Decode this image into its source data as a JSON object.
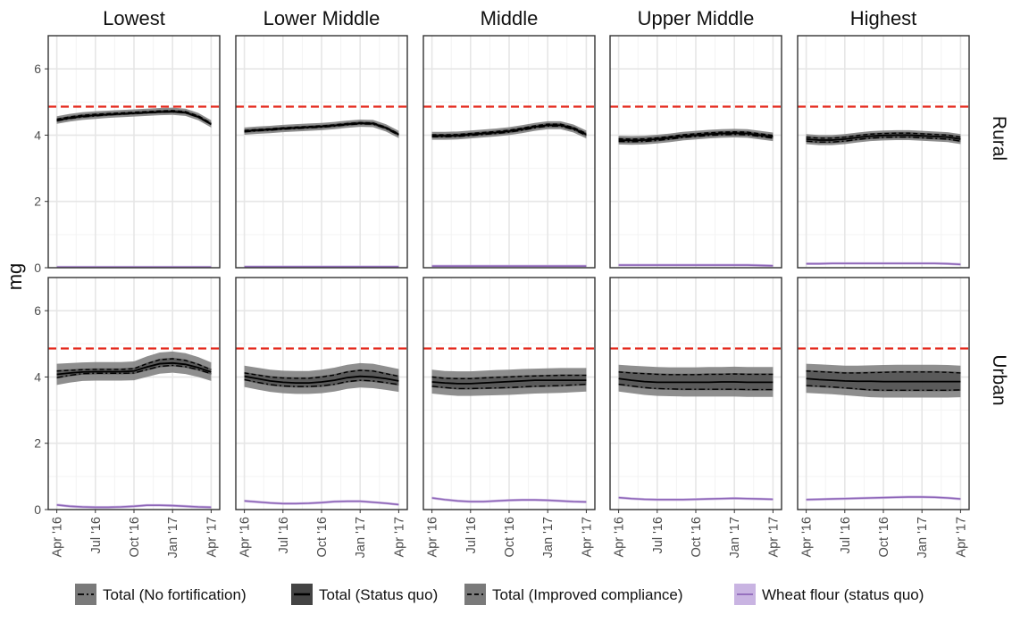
{
  "colors": {
    "panel_border": "#333333",
    "grid_major": "#e6e6e6",
    "grid_minor": "#f3f3f3",
    "ribbon": "#7a7a7a",
    "ribbon_dark": "#444444",
    "line": "#000000",
    "wheat": "#8e66b8",
    "wheat_ribbon": "#c9b4e2",
    "reference": "#e4271b"
  },
  "chart_data": {
    "type": "line",
    "ylabel": "mg",
    "ylim": [
      0,
      7
    ],
    "yticks": [
      0,
      2,
      4,
      6
    ],
    "reference_line": 4.86,
    "x_ticks": [
      "2016-04",
      "2016-07",
      "2016-10",
      "2017-01",
      "2017-04"
    ],
    "x_tick_labels": [
      "Apr '16",
      "Jul '16",
      "Oct '16",
      "Jan '17",
      "Apr '17"
    ],
    "x_months": [
      "2016-04",
      "2016-05",
      "2016-06",
      "2016-07",
      "2016-08",
      "2016-09",
      "2016-10",
      "2016-11",
      "2016-12",
      "2017-01",
      "2017-02",
      "2017-03",
      "2017-04"
    ],
    "columns": [
      "Lowest",
      "Lower Middle",
      "Middle",
      "Upper Middle",
      "Highest"
    ],
    "rows": [
      "Rural",
      "Urban"
    ],
    "legend": [
      {
        "key": "no_fort",
        "label": "Total (No fortification)"
      },
      {
        "key": "status_quo",
        "label": "Total (Status quo)"
      },
      {
        "key": "improved",
        "label": "Total (Improved compliance)"
      },
      {
        "key": "wheat",
        "label": "Wheat flour (status quo)"
      }
    ],
    "panels": [
      {
        "row": "Rural",
        "col": "Lowest",
        "status_quo": [
          4.45,
          4.52,
          4.57,
          4.6,
          4.62,
          4.64,
          4.66,
          4.68,
          4.7,
          4.71,
          4.68,
          4.55,
          4.33
        ],
        "no_fort": [
          4.43,
          4.5,
          4.55,
          4.58,
          4.61,
          4.63,
          4.65,
          4.67,
          4.69,
          4.7,
          4.67,
          4.54,
          4.32
        ],
        "improved": [
          4.48,
          4.55,
          4.6,
          4.63,
          4.65,
          4.67,
          4.69,
          4.71,
          4.73,
          4.74,
          4.71,
          4.58,
          4.36
        ],
        "wheat": [
          0.02,
          0.02,
          0.02,
          0.02,
          0.02,
          0.02,
          0.02,
          0.02,
          0.02,
          0.02,
          0.02,
          0.02,
          0.02
        ]
      },
      {
        "row": "Rural",
        "col": "Lower Middle",
        "status_quo": [
          4.12,
          4.15,
          4.17,
          4.2,
          4.22,
          4.24,
          4.26,
          4.29,
          4.33,
          4.36,
          4.35,
          4.22,
          4.02
        ],
        "no_fort": [
          4.1,
          4.13,
          4.15,
          4.18,
          4.2,
          4.22,
          4.24,
          4.27,
          4.31,
          4.34,
          4.33,
          4.2,
          4.0
        ],
        "improved": [
          4.14,
          4.17,
          4.19,
          4.22,
          4.24,
          4.26,
          4.28,
          4.31,
          4.35,
          4.38,
          4.37,
          4.24,
          4.04
        ],
        "wheat": [
          0.03,
          0.03,
          0.03,
          0.03,
          0.03,
          0.03,
          0.03,
          0.03,
          0.03,
          0.03,
          0.03,
          0.03,
          0.03
        ]
      },
      {
        "row": "Rural",
        "col": "Middle",
        "status_quo": [
          3.98,
          3.98,
          3.99,
          4.02,
          4.05,
          4.08,
          4.12,
          4.18,
          4.25,
          4.3,
          4.3,
          4.2,
          4.02
        ],
        "no_fort": [
          3.95,
          3.95,
          3.96,
          3.99,
          4.02,
          4.05,
          4.09,
          4.15,
          4.22,
          4.27,
          4.27,
          4.17,
          3.99
        ],
        "improved": [
          4.01,
          4.01,
          4.02,
          4.05,
          4.08,
          4.11,
          4.15,
          4.21,
          4.28,
          4.33,
          4.33,
          4.23,
          4.05
        ],
        "wheat": [
          0.05,
          0.05,
          0.05,
          0.05,
          0.05,
          0.05,
          0.05,
          0.05,
          0.05,
          0.05,
          0.05,
          0.05,
          0.05
        ]
      },
      {
        "row": "Rural",
        "col": "Upper Middle",
        "status_quo": [
          3.85,
          3.84,
          3.85,
          3.88,
          3.92,
          3.97,
          4.0,
          4.03,
          4.05,
          4.06,
          4.05,
          4.0,
          3.95
        ],
        "no_fort": [
          3.81,
          3.8,
          3.81,
          3.84,
          3.88,
          3.93,
          3.96,
          3.99,
          4.01,
          4.02,
          4.01,
          3.96,
          3.91
        ],
        "improved": [
          3.89,
          3.88,
          3.89,
          3.92,
          3.96,
          4.01,
          4.04,
          4.07,
          4.09,
          4.1,
          4.09,
          4.04,
          3.99
        ],
        "wheat": [
          0.08,
          0.08,
          0.08,
          0.08,
          0.08,
          0.08,
          0.08,
          0.08,
          0.08,
          0.08,
          0.08,
          0.07,
          0.06
        ]
      },
      {
        "row": "Rural",
        "col": "Highest",
        "status_quo": [
          3.88,
          3.85,
          3.85,
          3.88,
          3.93,
          3.97,
          3.99,
          4.0,
          4.0,
          3.98,
          3.96,
          3.94,
          3.88
        ],
        "no_fort": [
          3.82,
          3.79,
          3.79,
          3.82,
          3.87,
          3.91,
          3.93,
          3.94,
          3.94,
          3.92,
          3.9,
          3.88,
          3.82
        ],
        "improved": [
          3.94,
          3.91,
          3.91,
          3.94,
          3.99,
          4.03,
          4.05,
          4.06,
          4.06,
          4.04,
          4.02,
          4.0,
          3.94
        ],
        "wheat": [
          0.12,
          0.12,
          0.13,
          0.13,
          0.13,
          0.13,
          0.13,
          0.13,
          0.13,
          0.13,
          0.13,
          0.12,
          0.1
        ]
      },
      {
        "row": "Urban",
        "col": "Lowest",
        "status_quo": [
          4.08,
          4.12,
          4.15,
          4.16,
          4.16,
          4.16,
          4.18,
          4.3,
          4.4,
          4.42,
          4.38,
          4.28,
          4.15
        ],
        "no_fort": [
          3.98,
          4.05,
          4.1,
          4.11,
          4.11,
          4.11,
          4.12,
          4.22,
          4.32,
          4.35,
          4.31,
          4.22,
          4.1
        ],
        "improved": [
          4.18,
          4.2,
          4.22,
          4.23,
          4.23,
          4.23,
          4.25,
          4.4,
          4.52,
          4.55,
          4.5,
          4.38,
          4.22
        ],
        "wheat": [
          0.14,
          0.1,
          0.08,
          0.07,
          0.07,
          0.08,
          0.1,
          0.13,
          0.13,
          0.12,
          0.1,
          0.08,
          0.07
        ]
      },
      {
        "row": "Urban",
        "col": "Lower Middle",
        "status_quo": [
          4.02,
          3.95,
          3.88,
          3.84,
          3.82,
          3.82,
          3.85,
          3.9,
          3.98,
          4.02,
          4.0,
          3.95,
          3.88
        ],
        "no_fort": [
          3.92,
          3.84,
          3.77,
          3.73,
          3.71,
          3.71,
          3.73,
          3.78,
          3.86,
          3.9,
          3.88,
          3.83,
          3.77
        ],
        "improved": [
          4.12,
          4.06,
          4.0,
          3.97,
          3.96,
          3.96,
          4.0,
          4.06,
          4.15,
          4.2,
          4.18,
          4.1,
          4.02
        ],
        "wheat": [
          0.26,
          0.23,
          0.2,
          0.18,
          0.18,
          0.19,
          0.21,
          0.24,
          0.25,
          0.25,
          0.22,
          0.19,
          0.15
        ]
      },
      {
        "row": "Urban",
        "col": "Middle",
        "status_quo": [
          3.85,
          3.82,
          3.8,
          3.8,
          3.82,
          3.84,
          3.86,
          3.88,
          3.9,
          3.9,
          3.9,
          3.9,
          3.9
        ],
        "no_fort": [
          3.72,
          3.68,
          3.65,
          3.65,
          3.66,
          3.67,
          3.68,
          3.7,
          3.72,
          3.73,
          3.74,
          3.76,
          3.78
        ],
        "improved": [
          4.0,
          3.96,
          3.95,
          3.95,
          3.97,
          3.99,
          4.0,
          4.02,
          4.03,
          4.04,
          4.05,
          4.05,
          4.05
        ],
        "wheat": [
          0.35,
          0.3,
          0.26,
          0.24,
          0.24,
          0.26,
          0.28,
          0.29,
          0.29,
          0.28,
          0.26,
          0.24,
          0.23
        ]
      },
      {
        "row": "Urban",
        "col": "Upper Middle",
        "status_quo": [
          3.95,
          3.9,
          3.86,
          3.84,
          3.84,
          3.84,
          3.84,
          3.84,
          3.85,
          3.85,
          3.84,
          3.84,
          3.84
        ],
        "no_fort": [
          3.78,
          3.73,
          3.68,
          3.65,
          3.64,
          3.63,
          3.63,
          3.63,
          3.63,
          3.63,
          3.62,
          3.62,
          3.62
        ],
        "improved": [
          4.15,
          4.12,
          4.1,
          4.08,
          4.07,
          4.07,
          4.07,
          4.08,
          4.08,
          4.09,
          4.08,
          4.08,
          4.08
        ],
        "wheat": [
          0.36,
          0.33,
          0.31,
          0.3,
          0.3,
          0.3,
          0.31,
          0.32,
          0.33,
          0.34,
          0.33,
          0.32,
          0.31
        ]
      },
      {
        "row": "Urban",
        "col": "Highest",
        "status_quo": [
          3.95,
          3.92,
          3.9,
          3.88,
          3.87,
          3.87,
          3.86,
          3.86,
          3.86,
          3.86,
          3.86,
          3.86,
          3.86
        ],
        "no_fort": [
          3.74,
          3.72,
          3.7,
          3.67,
          3.64,
          3.61,
          3.6,
          3.6,
          3.6,
          3.6,
          3.6,
          3.6,
          3.61
        ],
        "improved": [
          4.18,
          4.16,
          4.14,
          4.12,
          4.12,
          4.13,
          4.14,
          4.15,
          4.15,
          4.15,
          4.15,
          4.14,
          4.12
        ],
        "wheat": [
          0.3,
          0.31,
          0.32,
          0.33,
          0.34,
          0.35,
          0.36,
          0.37,
          0.38,
          0.38,
          0.37,
          0.35,
          0.32
        ]
      }
    ]
  }
}
